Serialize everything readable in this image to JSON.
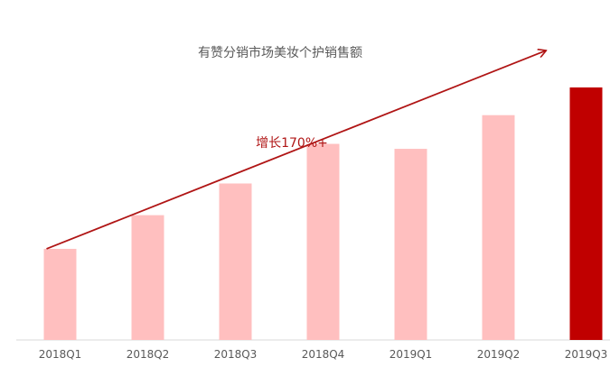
{
  "chart_data": {
    "type": "bar",
    "title": "有赞分销市场美妆个护销售额",
    "xlabel": "",
    "ylabel": "",
    "categories": [
      "2018Q1",
      "2018Q2",
      "2018Q3",
      "2018Q4",
      "2019Q1",
      "2019Q2",
      "2019Q3"
    ],
    "values": [
      92,
      126,
      158,
      198,
      193,
      227,
      255
    ],
    "ylim": [
      0,
      275
    ],
    "highlight_index": 6,
    "colors": {
      "bar": "#FFBFBF",
      "highlight": "#C00000",
      "trend": "#B01515",
      "axis": "#D9D9D9"
    },
    "annotation": {
      "text": "增长170%+"
    },
    "trend_line": {
      "from_value": 92,
      "to_value": 292
    },
    "grid": false
  }
}
